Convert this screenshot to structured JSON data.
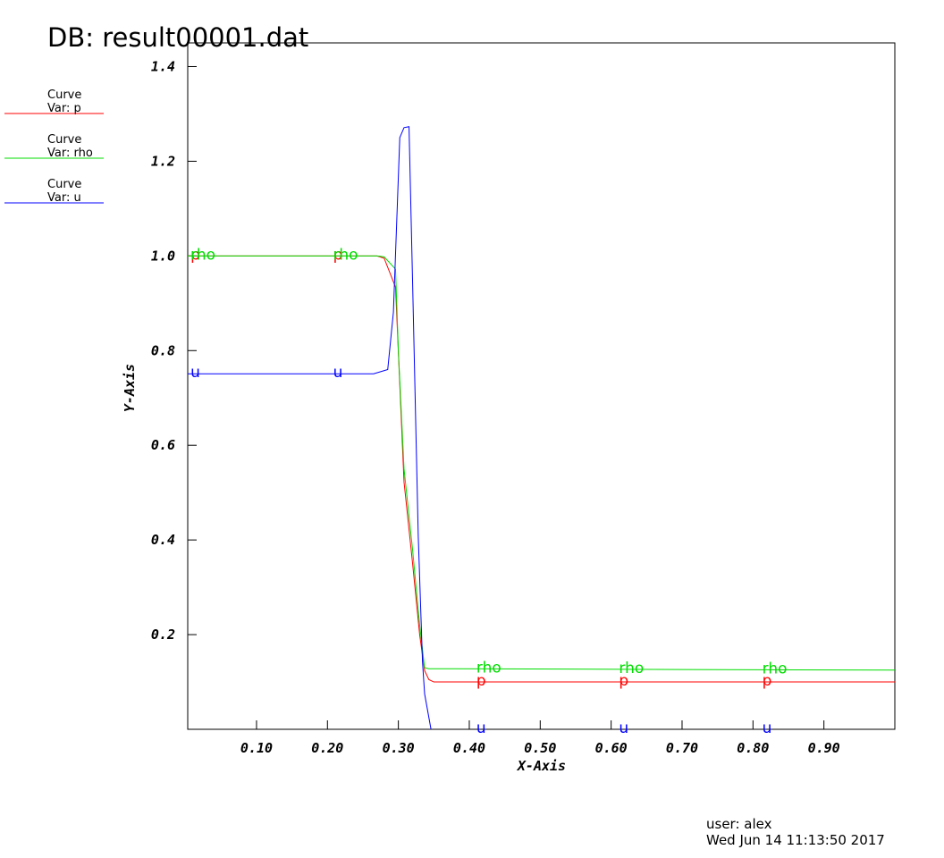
{
  "chart_data": {
    "type": "line",
    "title": "DB: result00001.dat",
    "x_label": "X-Axis",
    "y_label": "Y-Axis",
    "user": "user: alex",
    "timestamp": "Wed Jun 14 11:13:50 2017",
    "xlim": [
      0.003,
      1.0
    ],
    "ylim": [
      0,
      1.45
    ],
    "xticks": [
      {
        "value": 0.1,
        "label": "0.10"
      },
      {
        "value": 0.2,
        "label": "0.20"
      },
      {
        "value": 0.3,
        "label": "0.30"
      },
      {
        "value": 0.4,
        "label": "0.40"
      },
      {
        "value": 0.5,
        "label": "0.50"
      },
      {
        "value": 0.6,
        "label": "0.60"
      },
      {
        "value": 0.7,
        "label": "0.70"
      },
      {
        "value": 0.8,
        "label": "0.80"
      },
      {
        "value": 0.9,
        "label": "0.90"
      }
    ],
    "yticks": [
      0.2,
      0.4,
      0.6,
      0.8,
      {
        "value": 1,
        "label": "1.0"
      },
      1.2,
      1.4
    ],
    "label_x": [
      0.007,
      0.208,
      0.41,
      0.611,
      0.813
    ],
    "series": [
      {
        "name": "p",
        "legend_title": "Curve",
        "legend_label": "Var: p",
        "color": "#ff0000",
        "x": [
          0.003,
          0.27,
          0.28,
          0.296,
          0.308,
          0.32,
          0.33,
          0.337,
          0.343,
          0.35,
          1.0
        ],
        "values": [
          1.0,
          1.0,
          0.995,
          0.934,
          0.522,
          0.351,
          0.2,
          0.124,
          0.105,
          0.1,
          0.1
        ]
      },
      {
        "name": "rho",
        "legend_title": "Curve",
        "legend_label": "Var: rho",
        "color": "#00dd00",
        "x": [
          0.003,
          0.27,
          0.28,
          0.296,
          0.3,
          0.308,
          0.32,
          0.33,
          0.337,
          0.343,
          1.0
        ],
        "values": [
          1.0,
          1.0,
          0.998,
          0.972,
          0.8,
          0.55,
          0.38,
          0.22,
          0.13,
          0.128,
          0.125
        ]
      },
      {
        "name": "u",
        "legend_title": "Curve",
        "legend_label": "Var: u",
        "color": "#0000ff",
        "x": [
          0.003,
          0.265,
          0.285,
          0.293,
          0.302,
          0.308,
          0.315,
          0.32,
          0.328,
          0.334,
          0.337,
          0.346
        ],
        "values": [
          0.751,
          0.751,
          0.76,
          0.881,
          1.25,
          1.271,
          1.273,
          0.948,
          0.41,
          0.143,
          0.075,
          0.0
        ]
      }
    ]
  }
}
